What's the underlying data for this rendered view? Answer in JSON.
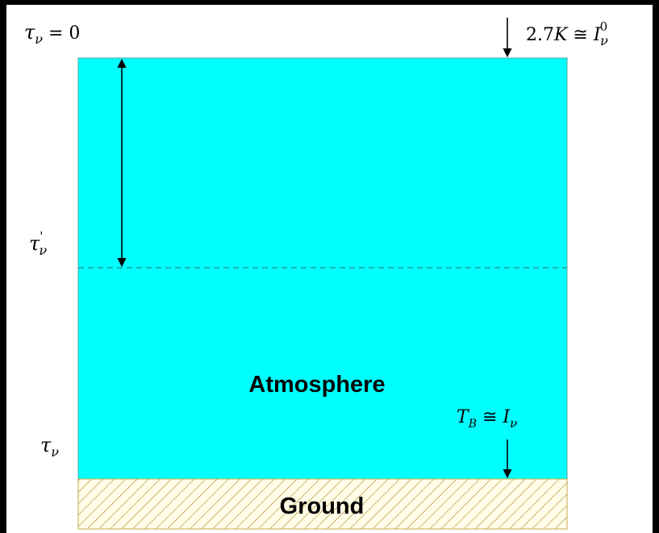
{
  "labels": {
    "tau_top": {
      "sym": "τ",
      "sub": "ν",
      "rest": " = 0"
    },
    "incoming": {
      "num": "2.7",
      "unit": "K",
      "op": " ≅ ",
      "sym": "I",
      "sub": "ν",
      "sup": "0"
    },
    "tau_prime": {
      "sym": "τ",
      "sub": "ν",
      "sup": "'"
    },
    "tau_bottom": {
      "sym": "τ",
      "sub": "ν"
    },
    "brightness": {
      "sym": "T",
      "sub": "B",
      "op": " ≅ ",
      "sym2": "I",
      "sub2": "ν"
    },
    "atmosphere": "Atmosphere",
    "ground": "Ground"
  },
  "colors": {
    "atmosphere_fill": "#00ffff",
    "ground_fill": "#fffde8",
    "hatch": "#b8953a",
    "dashed_line": "#2a8a8a",
    "frame": "#000000"
  }
}
